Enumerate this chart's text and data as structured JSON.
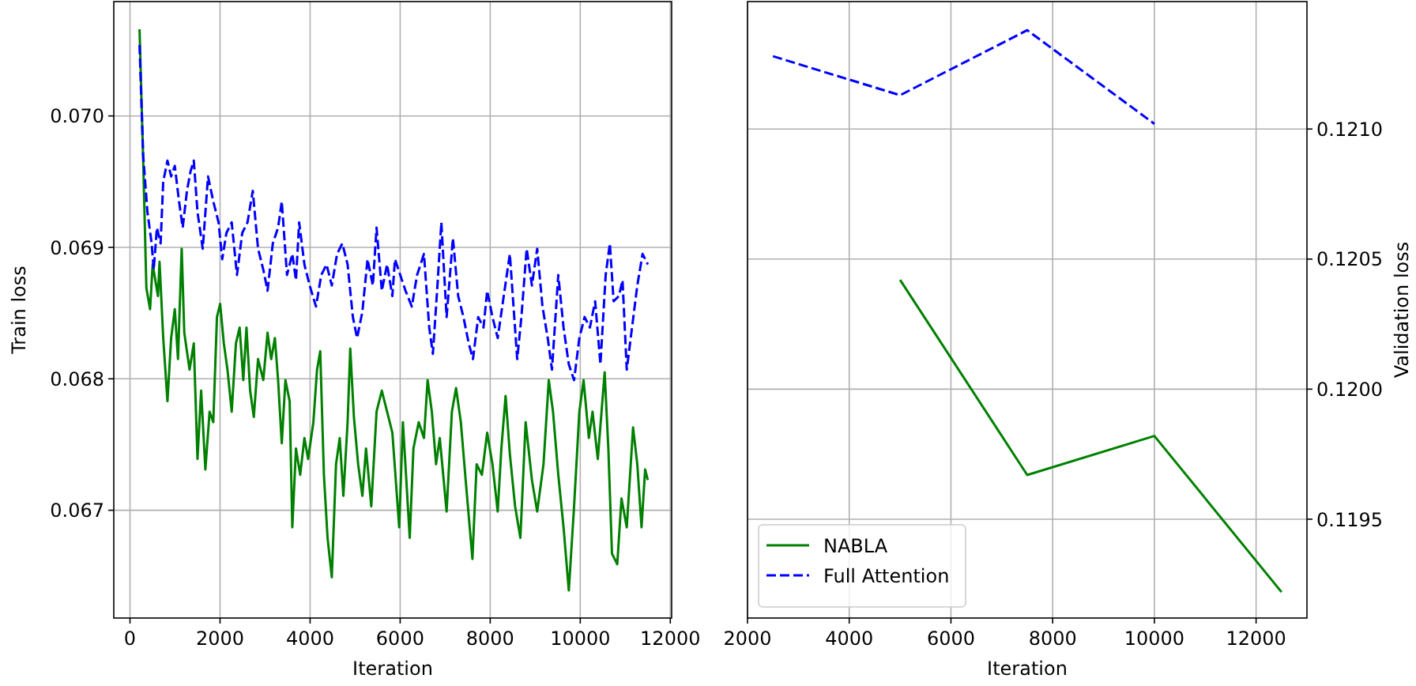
{
  "chart_data": [
    {
      "type": "line",
      "xlabel": "Iteration",
      "ylabel": "Train loss",
      "xlim": [
        -360,
        12030
      ],
      "ylim": [
        0.06618,
        0.07087
      ],
      "xticks": [
        0,
        2000,
        4000,
        6000,
        8000,
        10000,
        12000
      ],
      "yticks": [
        0.067,
        0.068,
        0.069,
        {
          "value": 0.07,
          "label": "0.070"
        }
      ],
      "grid": true,
      "legend": false,
      "series": [
        {
          "color": "#008000",
          "line_style": "solid",
          "x": [
            212,
            293,
            364,
            446,
            504,
            621,
            656,
            738,
            832,
            914,
            995,
            1066,
            1148,
            1206,
            1323,
            1417,
            1499,
            1580,
            1674,
            1768,
            1850,
            1931,
            2002,
            2084,
            2165,
            2259,
            2353,
            2435,
            2516,
            2587,
            2668,
            2750,
            2844,
            2961,
            3055,
            3136,
            3218,
            3289,
            3371,
            3452,
            3546,
            3605,
            3686,
            3780,
            3874,
            3956,
            4073,
            4154,
            4225,
            4307,
            4388,
            4482,
            4576,
            4658,
            4739,
            4833,
            4892,
            4973,
            5067,
            5161,
            5242,
            5359,
            5476,
            5593,
            5710,
            5827,
            5979,
            6061,
            6213,
            6295,
            6412,
            6529,
            6610,
            6704,
            6798,
            6880,
            7032,
            7149,
            7242,
            7348,
            7465,
            7605,
            7699,
            7816,
            7933,
            8050,
            8167,
            8248,
            8342,
            8436,
            8553,
            8670,
            8787,
            8927,
            9044,
            9184,
            9301,
            9395,
            9512,
            9629,
            9746,
            9863,
            9980,
            10074,
            10191,
            10273,
            10390,
            10542,
            10624,
            10705,
            10822,
            10916,
            11033,
            11173,
            11267,
            11361,
            11441,
            11501
          ],
          "values": [
            0.07066,
            0.06966,
            0.06869,
            0.06853,
            0.06887,
            0.06863,
            0.06889,
            0.06831,
            0.06783,
            0.06831,
            0.06853,
            0.06815,
            0.06899,
            0.06835,
            0.06807,
            0.06827,
            0.06739,
            0.06791,
            0.06731,
            0.06775,
            0.06767,
            0.06847,
            0.06857,
            0.06827,
            0.06807,
            0.06775,
            0.06827,
            0.06839,
            0.06799,
            0.06839,
            0.06791,
            0.06771,
            0.06815,
            0.06799,
            0.06835,
            0.06815,
            0.06831,
            0.06799,
            0.06751,
            0.06799,
            0.06783,
            0.06687,
            0.06747,
            0.06727,
            0.06755,
            0.06739,
            0.06767,
            0.06807,
            0.06821,
            0.06727,
            0.06679,
            0.06649,
            0.06735,
            0.06755,
            0.06711,
            0.06767,
            0.06823,
            0.06771,
            0.06735,
            0.06711,
            0.06747,
            0.06703,
            0.06775,
            0.06791,
            0.06775,
            0.06759,
            0.06687,
            0.06767,
            0.06679,
            0.06747,
            0.06767,
            0.06755,
            0.06799,
            0.06775,
            0.06735,
            0.06755,
            0.06699,
            0.06775,
            0.06793,
            0.06767,
            0.06719,
            0.06663,
            0.06735,
            0.06727,
            0.06759,
            0.06735,
            0.06699,
            0.06747,
            0.06787,
            0.06743,
            0.06703,
            0.06679,
            0.06767,
            0.06723,
            0.06699,
            0.06735,
            0.06799,
            0.06775,
            0.06727,
            0.06687,
            0.06639,
            0.06703,
            0.06775,
            0.06799,
            0.06755,
            0.06775,
            0.06739,
            0.06805,
            0.06747,
            0.06667,
            0.06659,
            0.06709,
            0.06687,
            0.06763,
            0.06735,
            0.06687,
            0.06731,
            0.06723
          ]
        },
        {
          "color": "#0000ff",
          "line_style": "dashed",
          "x": [
            212,
            293,
            387,
            481,
            527,
            598,
            680,
            738,
            832,
            914,
            995,
            1089,
            1171,
            1265,
            1346,
            1417,
            1499,
            1616,
            1733,
            1850,
            1967,
            2048,
            2142,
            2259,
            2376,
            2493,
            2610,
            2727,
            2844,
            2961,
            3055,
            3172,
            3289,
            3371,
            3487,
            3605,
            3686,
            3757,
            3874,
            3991,
            4131,
            4248,
            4365,
            4482,
            4599,
            4716,
            4833,
            4950,
            5044,
            5161,
            5276,
            5394,
            5476,
            5593,
            5710,
            5827,
            5885,
            6002,
            6119,
            6259,
            6376,
            6529,
            6646,
            6727,
            6821,
            6915,
            7032,
            7172,
            7289,
            7406,
            7523,
            7617,
            7734,
            7851,
            7933,
            8050,
            8167,
            8284,
            8436,
            8518,
            8600,
            8693,
            8810,
            8927,
            9044,
            9161,
            9278,
            9372,
            9512,
            9629,
            9746,
            9863,
            9980,
            10097,
            10214,
            10331,
            10448,
            10565,
            10658,
            10741,
            10858,
            10939,
            11033,
            11150,
            11267,
            11384,
            11501
          ],
          "values": [
            0.07054,
            0.0697,
            0.06927,
            0.06903,
            0.06883,
            0.06915,
            0.06903,
            0.0695,
            0.06966,
            0.06954,
            0.06962,
            0.06935,
            0.06915,
            0.06943,
            0.06958,
            0.06966,
            0.06927,
            0.06899,
            0.06954,
            0.06935,
            0.06919,
            0.06891,
            0.06911,
            0.06919,
            0.06879,
            0.06911,
            0.06919,
            0.06943,
            0.06899,
            0.06883,
            0.06867,
            0.06903,
            0.06915,
            0.06935,
            0.06879,
            0.06895,
            0.06875,
            0.06919,
            0.06887,
            0.06871,
            0.06855,
            0.06879,
            0.06887,
            0.06871,
            0.06895,
            0.06903,
            0.06887,
            0.06847,
            0.06831,
            0.06851,
            0.06891,
            0.06871,
            0.06915,
            0.06867,
            0.06887,
            0.06863,
            0.06891,
            0.06879,
            0.06867,
            0.06855,
            0.06879,
            0.06895,
            0.06839,
            0.06819,
            0.06867,
            0.06919,
            0.06847,
            0.06907,
            0.06863,
            0.06847,
            0.06827,
            0.06815,
            0.06847,
            0.06839,
            0.06867,
            0.06847,
            0.06831,
            0.06859,
            0.06895,
            0.06855,
            0.06815,
            0.06847,
            0.06899,
            0.06871,
            0.06899,
            0.06855,
            0.06831,
            0.06807,
            0.06879,
            0.06839,
            0.06811,
            0.06799,
            0.06831,
            0.06847,
            0.06839,
            0.06859,
            0.06811,
            0.06879,
            0.06903,
            0.06859,
            0.06863,
            0.06875,
            0.06807,
            0.06839,
            0.06871,
            0.06895,
            0.06887
          ]
        }
      ]
    },
    {
      "type": "line",
      "xlabel": "Iteration",
      "y2label": "Validation loss",
      "xlim": [
        2000,
        13000
      ],
      "y2lim": [
        0.11912,
        0.12149
      ],
      "xticks": [
        2000,
        4000,
        6000,
        8000,
        10000,
        12000
      ],
      "y2ticks": [
        0.1195,
        {
          "value": 0.12,
          "label": "0.1200"
        },
        0.1205,
        {
          "value": 0.121,
          "label": "0.1210"
        }
      ],
      "grid": true,
      "legend": "bottom left",
      "series": [
        {
          "name": "NABLA",
          "color": "#008000",
          "line_style": "solid",
          "axis": "y2",
          "x": [
            5000,
            7500,
            10000,
            12500
          ],
          "values": [
            0.12042,
            0.11967,
            0.11982,
            0.11922
          ]
        },
        {
          "name": "Full Attention",
          "color": "#0000ff",
          "line_style": "dashed",
          "axis": "y2",
          "x": [
            2500,
            5000,
            7500,
            10000
          ],
          "values": [
            0.12128,
            0.12113,
            0.12138,
            0.12102
          ]
        }
      ]
    }
  ]
}
